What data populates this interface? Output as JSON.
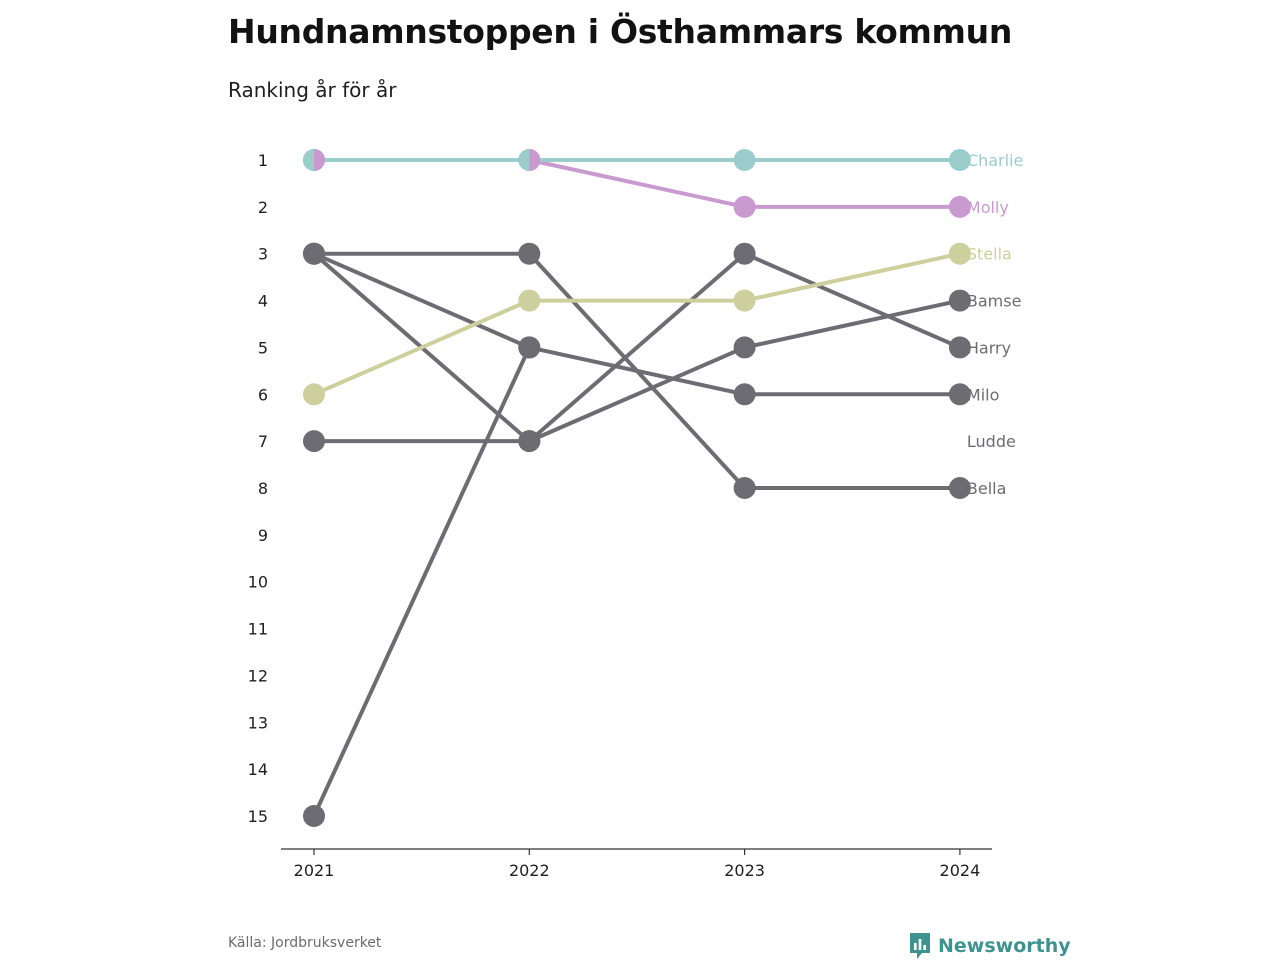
{
  "title": "Hundnamnstoppen i Östhammars kommun",
  "subtitle": "Ranking år för år",
  "source": "Källa: Jordbruksverket",
  "brand": "Newsworthy",
  "colors": {
    "Charlie": "#9bcdcd",
    "Molly": "#c99ad0",
    "Stella": "#cdcf9c",
    "other": "#6d6c73",
    "brand": "#3f938f"
  },
  "chart_data": {
    "type": "line",
    "title": "Hundnamnstoppen i Östhammars kommun",
    "subtitle": "Ranking år för år",
    "x": [
      "2021",
      "2022",
      "2023",
      "2024"
    ],
    "y_ticks": [
      "1",
      "2",
      "3",
      "4",
      "5",
      "6",
      "7",
      "8",
      "9",
      "10",
      "11",
      "12",
      "13",
      "14",
      "15"
    ],
    "ylim": [
      1,
      15
    ],
    "y_inverted": true,
    "grid": false,
    "series": [
      {
        "name": "Bella",
        "values": [
          3,
          3,
          8,
          8
        ]
      },
      {
        "name": "Ludde",
        "values": [
          15,
          5,
          null,
          null
        ]
      },
      {
        "name": "Milo",
        "values": [
          3,
          5,
          6,
          6
        ]
      },
      {
        "name": "Harry",
        "values": [
          7,
          7,
          3,
          5
        ]
      },
      {
        "name": "Bamse",
        "values": [
          3,
          7,
          5,
          4
        ]
      },
      {
        "name": "Stella",
        "values": [
          6,
          4,
          4,
          3
        ]
      },
      {
        "name": "Molly",
        "values": [
          1,
          1,
          2,
          2
        ]
      },
      {
        "name": "Charlie",
        "values": [
          1,
          1,
          1,
          1
        ]
      }
    ]
  }
}
